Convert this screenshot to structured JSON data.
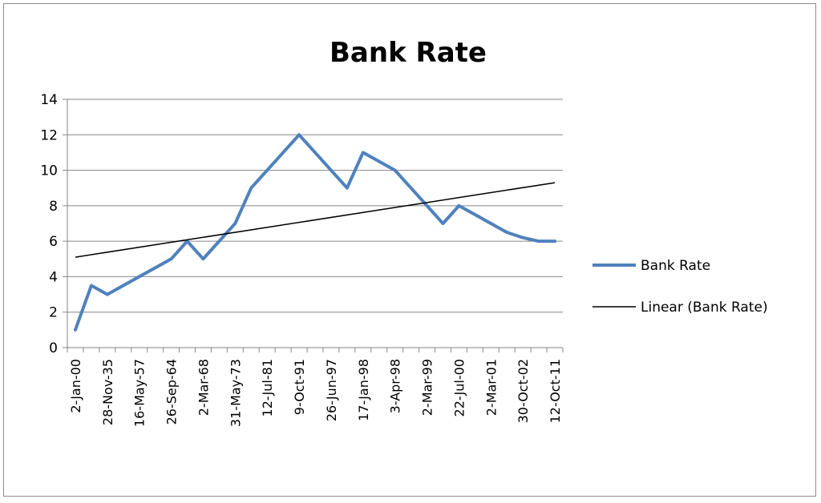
{
  "chart_data": {
    "type": "line",
    "title": "Bank Rate",
    "xlabel": "",
    "ylabel": "",
    "ylim": [
      0,
      14
    ],
    "yticks": [
      "0",
      "2",
      "4",
      "6",
      "8",
      "10",
      "12",
      "14"
    ],
    "grid": true,
    "legend_position": "right",
    "categories": [
      "2-Jan-00",
      "",
      "28-Nov-35",
      "",
      "16-May-57",
      "",
      "26-Sep-64",
      "",
      "2-Mar-68",
      "",
      "31-May-73",
      "",
      "12-Jul-81",
      "",
      "9-Oct-91",
      "",
      "26-Jun-97",
      "",
      "17-Jan-98",
      "",
      "3-Apr-98",
      "",
      "2-Mar-99",
      "",
      "22-Jul-00",
      "",
      "2-Mar-01",
      "",
      "30-Oct-02",
      "",
      "12-Oct-11"
    ],
    "series": [
      {
        "name": "Bank Rate",
        "color": "#4f81bd",
        "values": [
          1,
          3.5,
          3,
          3.5,
          4,
          4.5,
          5,
          6,
          5,
          6,
          7,
          9,
          10,
          11,
          12,
          11,
          10,
          9,
          11,
          10.5,
          10,
          9,
          8,
          7,
          8,
          7.5,
          7,
          6.5,
          6.2,
          6,
          6
        ]
      },
      {
        "name": "Linear (Bank Rate)",
        "color": "#000000",
        "type": "trendline",
        "start": 5.1,
        "end": 9.3
      }
    ]
  }
}
